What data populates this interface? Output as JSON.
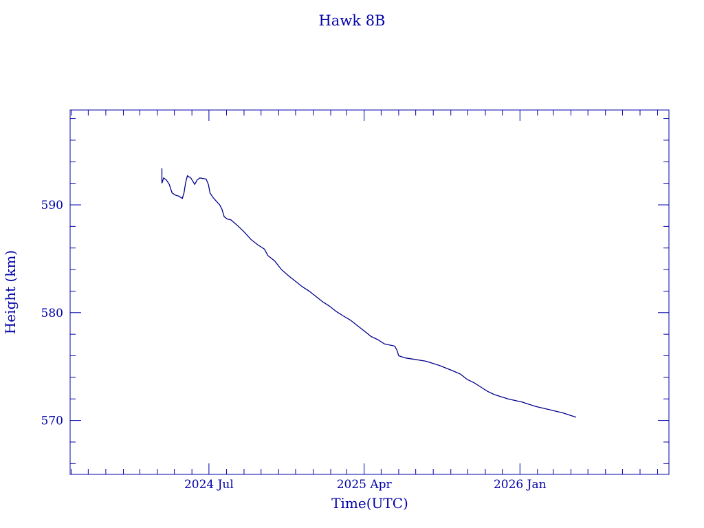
{
  "chart_data": {
    "type": "line",
    "title": "Hawk 8B",
    "xlabel": "Time(UTC)",
    "ylabel": "Height (km)",
    "xlim": [
      "2023-10-30",
      "2026-09-21"
    ],
    "ylim": [
      565,
      598.8
    ],
    "x_ticks": [
      {
        "date": "2024-07-01",
        "label": "2024 Jul"
      },
      {
        "date": "2025-04-01",
        "label": "2025 Apr"
      },
      {
        "date": "2026-01-01",
        "label": "2026 Jan"
      }
    ],
    "x_minor_tick_interval": "1 month",
    "y_ticks": [
      570,
      580,
      590
    ],
    "y_minor_tick_interval": 2,
    "grid": false,
    "color": "#00008b",
    "axis_color": "#0000a8",
    "points": [
      [
        "2024-04-09",
        593.4
      ],
      [
        "2024-04-09",
        592.0
      ],
      [
        "2024-04-12",
        592.5
      ],
      [
        "2024-04-17",
        592.3
      ],
      [
        "2024-04-22",
        591.9
      ],
      [
        "2024-04-27",
        591.1
      ],
      [
        "2024-05-03",
        590.9
      ],
      [
        "2024-05-09",
        590.8
      ],
      [
        "2024-05-15",
        590.6
      ],
      [
        "2024-05-18",
        591.1
      ],
      [
        "2024-05-21",
        592.1
      ],
      [
        "2024-05-24",
        592.7
      ],
      [
        "2024-05-30",
        592.5
      ],
      [
        "2024-06-06",
        591.9
      ],
      [
        "2024-06-10",
        592.3
      ],
      [
        "2024-06-15",
        592.5
      ],
      [
        "2024-06-26",
        592.4
      ],
      [
        "2024-06-30",
        591.9
      ],
      [
        "2024-07-03",
        591.1
      ],
      [
        "2024-07-08",
        590.7
      ],
      [
        "2024-07-13",
        590.4
      ],
      [
        "2024-07-20",
        590.0
      ],
      [
        "2024-07-24",
        589.6
      ],
      [
        "2024-07-28",
        588.9
      ],
      [
        "2024-08-02",
        588.7
      ],
      [
        "2024-08-09",
        588.6
      ],
      [
        "2024-08-20",
        588.1
      ],
      [
        "2024-09-01",
        587.5
      ],
      [
        "2024-09-13",
        586.8
      ],
      [
        "2024-09-25",
        586.3
      ],
      [
        "2024-10-07",
        585.9
      ],
      [
        "2024-10-13",
        585.3
      ],
      [
        "2024-10-25",
        584.8
      ],
      [
        "2024-11-06",
        584.0
      ],
      [
        "2024-11-19",
        583.4
      ],
      [
        "2024-12-01",
        582.9
      ],
      [
        "2024-12-13",
        582.4
      ],
      [
        "2024-12-25",
        582.0
      ],
      [
        "2025-01-06",
        581.5
      ],
      [
        "2025-01-18",
        581.0
      ],
      [
        "2025-01-30",
        580.6
      ],
      [
        "2025-02-11",
        580.1
      ],
      [
        "2025-02-23",
        579.7
      ],
      [
        "2025-03-08",
        579.3
      ],
      [
        "2025-03-20",
        578.8
      ],
      [
        "2025-04-01",
        578.3
      ],
      [
        "2025-04-13",
        577.8
      ],
      [
        "2025-04-25",
        577.5
      ],
      [
        "2025-05-07",
        577.1
      ],
      [
        "2025-05-25",
        576.9
      ],
      [
        "2025-05-29",
        576.5
      ],
      [
        "2025-06-01",
        576.0
      ],
      [
        "2025-06-13",
        575.8
      ],
      [
        "2025-06-25",
        575.7
      ],
      [
        "2025-07-19",
        575.5
      ],
      [
        "2025-08-12",
        575.1
      ],
      [
        "2025-09-05",
        574.6
      ],
      [
        "2025-09-18",
        574.3
      ],
      [
        "2025-09-30",
        573.8
      ],
      [
        "2025-10-12",
        573.5
      ],
      [
        "2025-10-24",
        573.1
      ],
      [
        "2025-11-05",
        572.7
      ],
      [
        "2025-11-17",
        572.4
      ],
      [
        "2025-12-11",
        572.0
      ],
      [
        "2026-01-05",
        571.7
      ],
      [
        "2026-01-29",
        571.3
      ],
      [
        "2026-02-22",
        571.0
      ],
      [
        "2026-03-18",
        570.7
      ],
      [
        "2026-04-10",
        570.3
      ]
    ]
  }
}
